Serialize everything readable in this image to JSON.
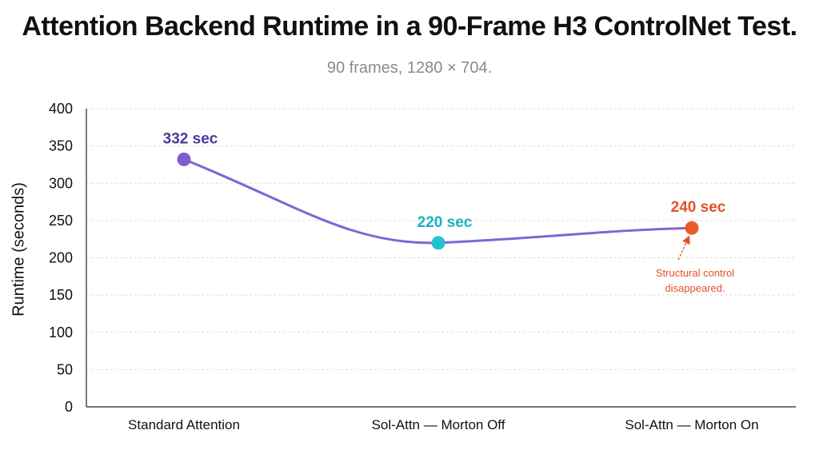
{
  "chart_data": {
    "type": "line",
    "title": "Attention Backend Runtime in a 90-Frame H3 ControlNet Test.",
    "subtitle": "90 frames, 1280 × 704.",
    "xlabel": "",
    "ylabel": "Runtime (seconds)",
    "ylim": [
      0,
      400
    ],
    "yticks": [
      0,
      50,
      100,
      150,
      200,
      250,
      300,
      350,
      400
    ],
    "categories": [
      "Standard Attention",
      "Sol-Attn — Morton Off",
      "Sol-Attn — Morton On"
    ],
    "values": [
      332,
      220,
      240
    ],
    "point_labels": [
      "332 sec",
      "220 sec",
      "240 sec"
    ],
    "point_colors": [
      "#7b5fd1",
      "#22c3cf",
      "#ec5a2e"
    ],
    "label_colors": [
      "#4b3a9e",
      "#17b3c3",
      "#e4502a"
    ],
    "line_color": "#8065d6",
    "grid": true,
    "annotation": {
      "text_lines": [
        "Structural control",
        "disappeared."
      ],
      "target_category": "Sol-Attn — Morton On",
      "color": "#e4502a"
    }
  }
}
